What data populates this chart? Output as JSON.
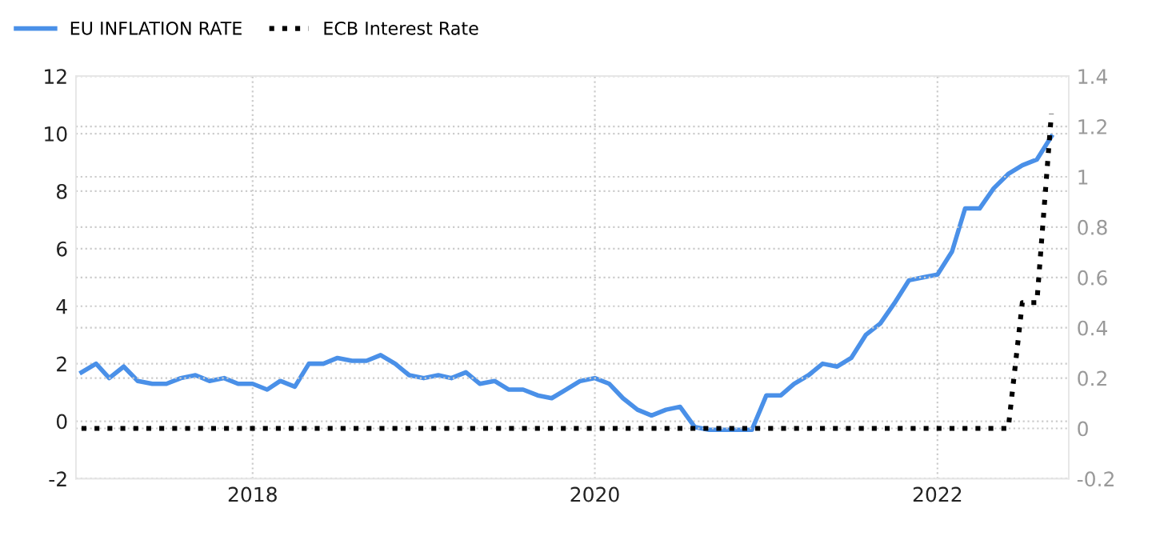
{
  "chart_data": {
    "type": "line",
    "x": [
      "2017-01",
      "2017-02",
      "2017-03",
      "2017-04",
      "2017-05",
      "2017-06",
      "2017-07",
      "2017-08",
      "2017-09",
      "2017-10",
      "2017-11",
      "2017-12",
      "2018-01",
      "2018-02",
      "2018-03",
      "2018-04",
      "2018-05",
      "2018-06",
      "2018-07",
      "2018-08",
      "2018-09",
      "2018-10",
      "2018-11",
      "2018-12",
      "2019-01",
      "2019-02",
      "2019-03",
      "2019-04",
      "2019-05",
      "2019-06",
      "2019-07",
      "2019-08",
      "2019-09",
      "2019-10",
      "2019-11",
      "2019-12",
      "2020-01",
      "2020-02",
      "2020-03",
      "2020-04",
      "2020-05",
      "2020-06",
      "2020-07",
      "2020-08",
      "2020-09",
      "2020-10",
      "2020-11",
      "2020-12",
      "2021-01",
      "2021-02",
      "2021-03",
      "2021-04",
      "2021-05",
      "2021-06",
      "2021-07",
      "2021-08",
      "2021-09",
      "2021-10",
      "2021-11",
      "2021-12",
      "2022-01",
      "2022-02",
      "2022-03",
      "2022-04",
      "2022-05",
      "2022-06",
      "2022-07",
      "2022-08",
      "2022-09"
    ],
    "series": [
      {
        "name": "EU INFLATION RATE",
        "color": "#4a90e8",
        "line_style": "solid",
        "values": [
          1.7,
          2.0,
          1.5,
          1.9,
          1.4,
          1.3,
          1.3,
          1.5,
          1.6,
          1.4,
          1.5,
          1.3,
          1.3,
          1.1,
          1.4,
          1.2,
          2.0,
          2.0,
          2.2,
          2.1,
          2.1,
          2.3,
          2.0,
          1.6,
          1.5,
          1.6,
          1.5,
          1.7,
          1.3,
          1.4,
          1.1,
          1.1,
          0.9,
          0.8,
          1.1,
          1.4,
          1.5,
          1.3,
          0.8,
          0.4,
          0.2,
          0.4,
          0.5,
          -0.2,
          -0.3,
          -0.3,
          -0.3,
          -0.3,
          0.9,
          0.9,
          1.3,
          1.6,
          2.0,
          1.9,
          2.2,
          3.0,
          3.4,
          4.1,
          4.9,
          5.0,
          5.1,
          5.9,
          7.4,
          7.4,
          8.1,
          8.6,
          8.9,
          9.1,
          9.9
        ]
      },
      {
        "name": "ECB Interest Rate",
        "color": "#000000",
        "line_style": "dotted",
        "axis": "y2",
        "values": [
          0,
          0,
          0,
          0,
          0,
          0,
          0,
          0,
          0,
          0,
          0,
          0,
          0,
          0,
          0,
          0,
          0,
          0,
          0,
          0,
          0,
          0,
          0,
          0,
          0,
          0,
          0,
          0,
          0,
          0,
          0,
          0,
          0,
          0,
          0,
          0,
          0,
          0,
          0,
          0,
          0,
          0,
          0,
          0,
          0,
          0,
          0,
          0,
          0,
          0,
          0,
          0,
          0,
          0,
          0,
          0,
          0,
          0,
          0,
          0,
          0,
          0,
          0,
          0,
          0,
          0,
          0.5,
          0.5,
          1.25
        ]
      }
    ],
    "xlim": [
      "2016-12-20",
      "2022-10-08"
    ],
    "xticks": [
      {
        "value": "2018-01-01",
        "label": "2018"
      },
      {
        "value": "2020-01-01",
        "label": "2020"
      },
      {
        "value": "2022-01-01",
        "label": "2022"
      }
    ],
    "ylim": [
      -2,
      12
    ],
    "yticks": [
      -2,
      0,
      2,
      4,
      6,
      8,
      10,
      12
    ],
    "y2lim": [
      -0.2,
      1.4
    ],
    "y2ticks": [
      -0.2,
      0,
      0.2,
      0.4,
      0.6,
      0.8,
      1,
      1.2,
      1.4
    ],
    "grid": true,
    "legend": "top left"
  }
}
